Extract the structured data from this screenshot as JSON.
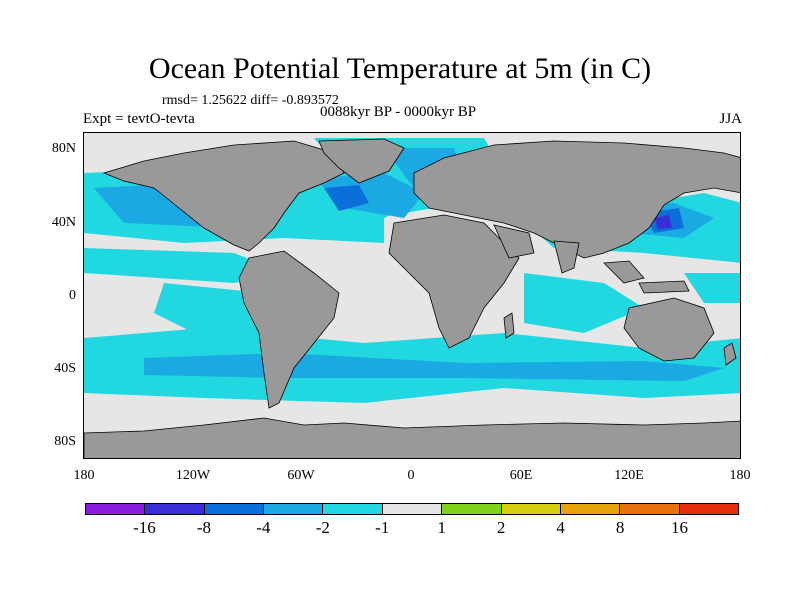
{
  "title": "Ocean Potential Temperature at 5m (in C)",
  "stats": "rmsd= 1.25622 diff= -0.893572",
  "experiment": "Expt = tevtO-tevta",
  "period": "0088kyr BP - 0000kyr BP",
  "season": "JJA",
  "map": {
    "lat_labels": [
      "80N",
      "40N",
      "0",
      "40S",
      "80S"
    ],
    "lon_labels": [
      "180",
      "120W",
      "60W",
      "0",
      "60E",
      "120E",
      "180"
    ],
    "land_color": "#999999",
    "near_zero_color": "#e6e6e6"
  },
  "colorbar": {
    "colors": [
      "#8a1ce0",
      "#3a2fd6",
      "#0a6fd8",
      "#1aa9e3",
      "#22d8e0",
      "#e6e6e6",
      "#7fd31a",
      "#d6cf10",
      "#e7a40a",
      "#e6720e",
      "#e52d0b"
    ],
    "labels": [
      "-16",
      "-8",
      "-4",
      "-2",
      "-1",
      "1",
      "2",
      "4",
      "8",
      "16"
    ]
  }
}
